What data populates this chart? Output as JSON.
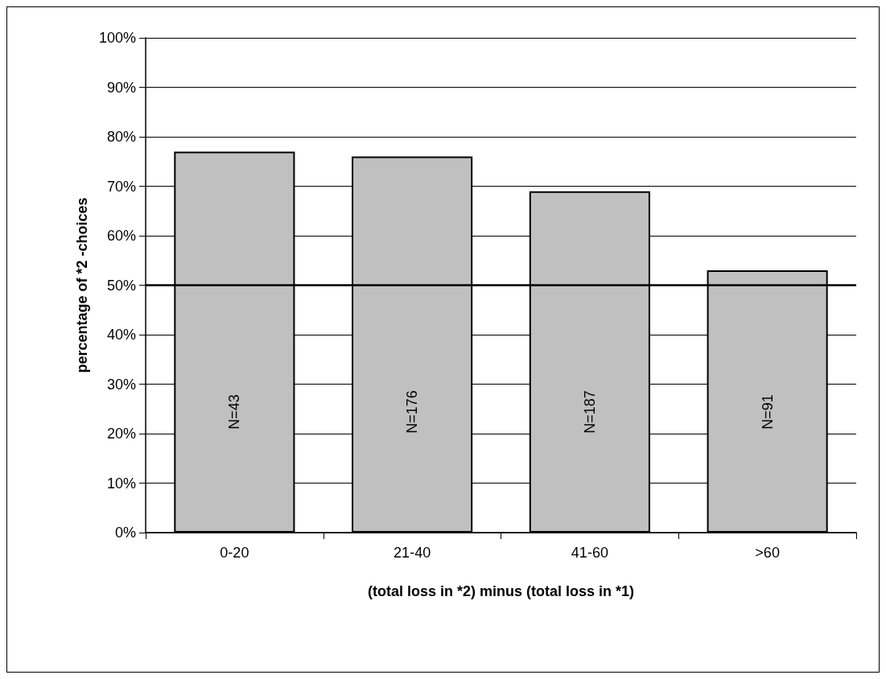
{
  "chart_data": {
    "type": "bar",
    "xlabel": "(total loss in *2) minus (total loss in *1)",
    "ylabel": "percentage of *2 -choices",
    "categories": [
      "0-20",
      "21-40",
      "41-60",
      ">60"
    ],
    "values": [
      77,
      76,
      69,
      53
    ],
    "color": "#c0c0c0",
    "ylim": [
      0,
      100
    ],
    "yticks": [
      {
        "value": 0,
        "label": "0%"
      },
      {
        "value": 10,
        "label": "10%"
      },
      {
        "value": 20,
        "label": "20%"
      },
      {
        "value": 30,
        "label": "30%"
      },
      {
        "value": 40,
        "label": "40%"
      },
      {
        "value": 50,
        "label": "50%"
      },
      {
        "value": 60,
        "label": "60%"
      },
      {
        "value": 70,
        "label": "70%"
      },
      {
        "value": 80,
        "label": "80%"
      },
      {
        "value": 90,
        "label": "90%"
      },
      {
        "value": 100,
        "label": "100%"
      }
    ],
    "grid": "y",
    "ref_lines": [
      {
        "axis": "y",
        "value": 50,
        "color": "#000000"
      }
    ],
    "annotations": [
      "N=43",
      "N=176",
      "N=187",
      "N=91"
    ]
  }
}
